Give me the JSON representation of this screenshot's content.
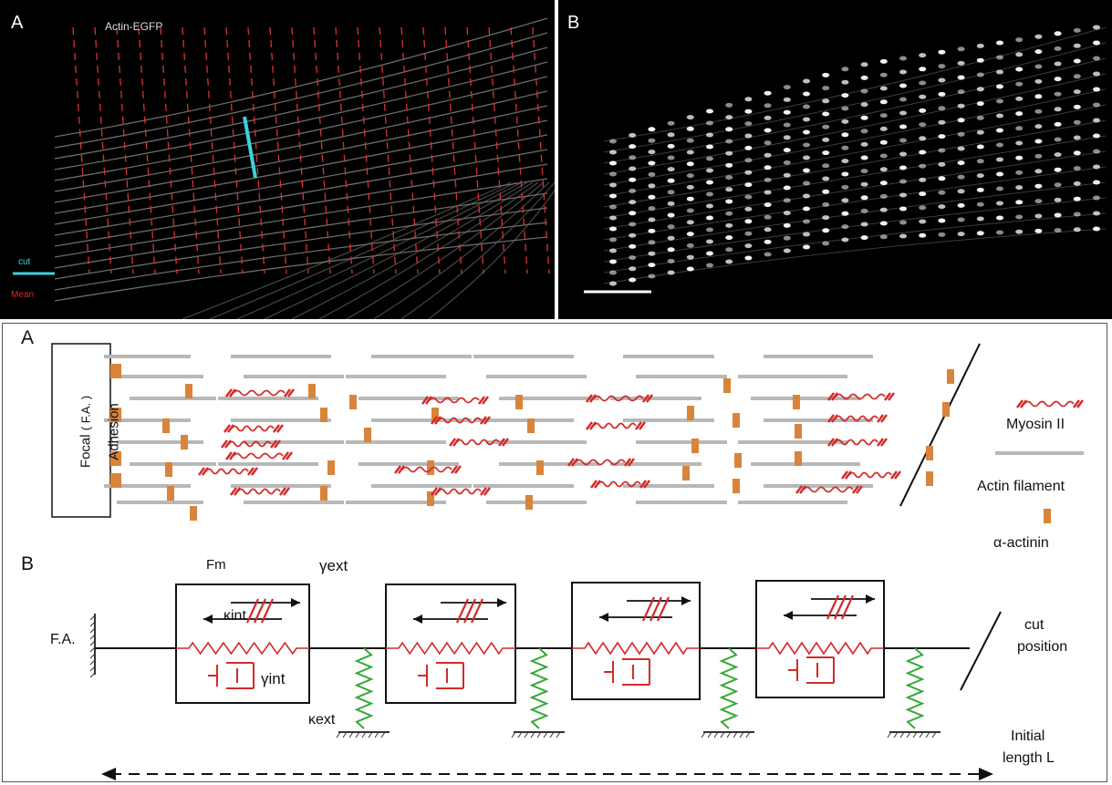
{
  "micrographs": {
    "left": {
      "panel_label": "A",
      "title": "Actin-EGFP",
      "legend_cut": "cut",
      "legend_red": "Mean"
    },
    "right": {
      "panel_label": "B"
    }
  },
  "schematic_a": {
    "panel_label": "A",
    "focal_adhesion_line1": "Focal",
    "focal_adhesion_abbrev": "( F.A. )",
    "focal_adhesion_line2": "Adhesion",
    "legend": {
      "myosin": "Myosin II",
      "actin": "Actin filament",
      "actinin": "α-actinin"
    }
  },
  "schematic_b": {
    "panel_label": "B",
    "fa_label": "F.A.",
    "fm_label": "Fm",
    "gamma_ext_label": "γext",
    "kappa_int_label": "κint",
    "gamma_int_label": "γint",
    "kappa_ext_label": "κext",
    "cut_position_line1": "cut",
    "cut_position_line2": "position",
    "length_line1": "Initial",
    "length_line2": "length L"
  },
  "colors": {
    "myosin": "#d42a2a",
    "actin": "#b8b8b8",
    "actinin": "#d9843a",
    "cut_line": "#3fd0dd",
    "spring_ext": "#38a838",
    "spring_int": "#d42a2a",
    "dashpot": "#d42a2a"
  }
}
